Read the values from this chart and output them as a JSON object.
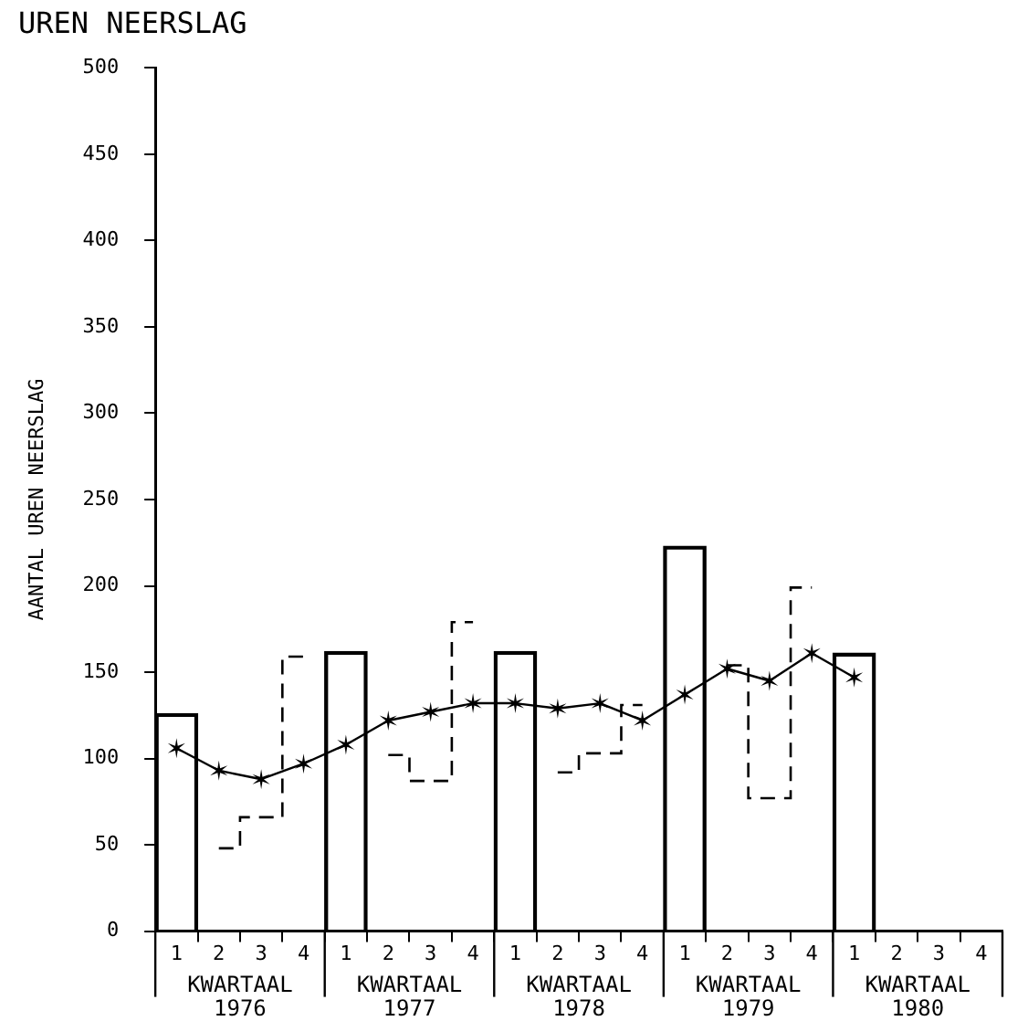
{
  "chart_data": {
    "type": "bar",
    "title": "UREN NEERSLAG",
    "ylabel": "AANTAL UREN NEERSLAG",
    "categories": [
      "1",
      "2",
      "3",
      "4",
      "1",
      "2",
      "3",
      "4",
      "1",
      "2",
      "3",
      "4",
      "1",
      "2",
      "3",
      "4",
      "1",
      "2",
      "3",
      "4"
    ],
    "series": [
      {
        "color": "#000000",
        "values": [
          126,
          null,
          null,
          null,
          162,
          null,
          null,
          null,
          162,
          null,
          null,
          null,
          223,
          null,
          null,
          null,
          161,
          null,
          null,
          null
        ]
      },
      {
        "type": "step",
        "color": "#000000",
        "line_style": "dashed",
        "values": [
          null,
          48,
          66,
          159,
          null,
          102,
          87,
          179,
          null,
          92,
          103,
          131,
          null,
          154,
          77,
          199,
          null,
          null,
          null,
          null
        ]
      },
      {
        "type": "line",
        "color": "#000000",
        "marker": "cross",
        "values": [
          106,
          93,
          88,
          97,
          108,
          122,
          127,
          132,
          132,
          129,
          132,
          122,
          137,
          152,
          145,
          161,
          147,
          null,
          null,
          null
        ]
      }
    ],
    "ylim": [
      0,
      500
    ],
    "yticks": [
      0,
      50,
      100,
      150,
      200,
      250,
      300,
      350,
      400,
      450,
      500
    ],
    "annotations": [
      "KWARTAAL 1976",
      "KWARTAAL 1977",
      "KWARTAAL 1978",
      "KWARTAAL 1979",
      "KWARTAAL 1980"
    ],
    "grid": false,
    "legend": false
  }
}
